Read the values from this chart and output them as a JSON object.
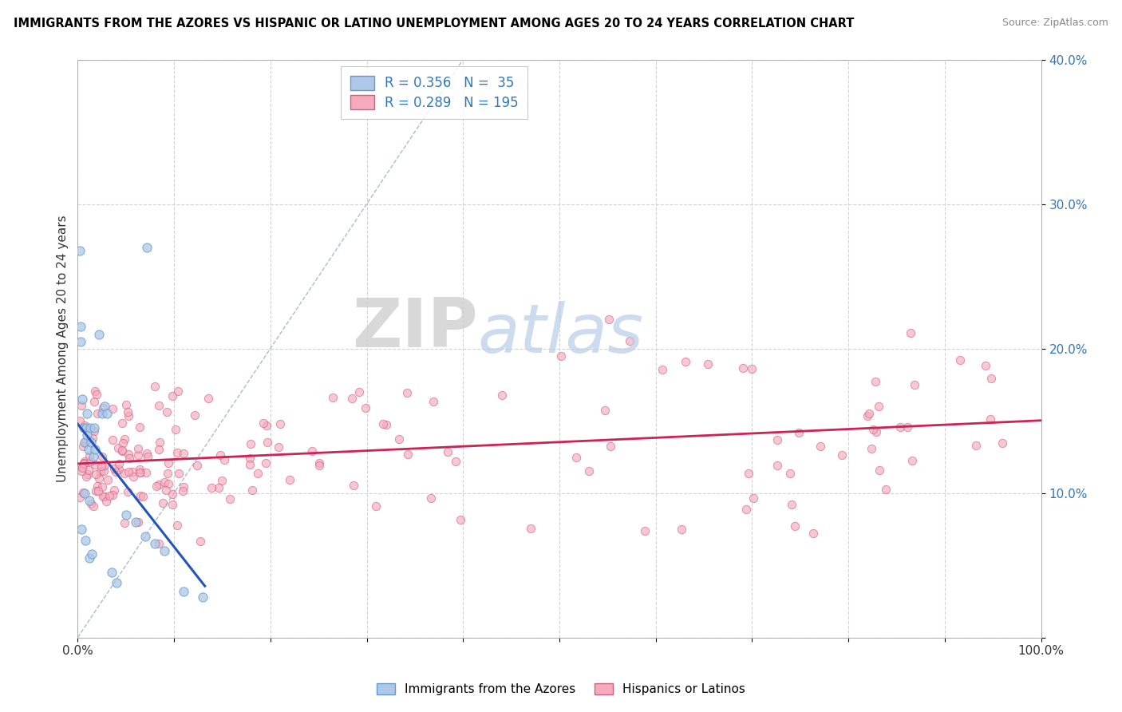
{
  "title": "IMMIGRANTS FROM THE AZORES VS HISPANIC OR LATINO UNEMPLOYMENT AMONG AGES 20 TO 24 YEARS CORRELATION CHART",
  "source": "Source: ZipAtlas.com",
  "ylabel": "Unemployment Among Ages 20 to 24 years",
  "xlim": [
    0,
    1.0
  ],
  "ylim": [
    0,
    0.4
  ],
  "xtick_labels": [
    "0.0%",
    "",
    "",
    "",
    "",
    "",
    "",
    "",
    "",
    "",
    "100.0%"
  ],
  "ytick_labels": [
    "",
    "10.0%",
    "20.0%",
    "30.0%",
    "40.0%"
  ],
  "R_blue": 0.356,
  "N_blue": 35,
  "R_pink": 0.289,
  "N_pink": 195,
  "blue_color": "#adc8e8",
  "blue_edge": "#6699cc",
  "pink_color": "#f5aabe",
  "pink_edge": "#d06080",
  "trend_blue_color": "#2255bb",
  "trend_pink_color": "#cc2255",
  "diagonal_color": "#9bb0cc",
  "legend_label_blue": "Immigrants from the Azores",
  "legend_label_pink": "Hispanics or Latinos",
  "watermark_zip": "ZIP",
  "watermark_atlas": "atlas"
}
